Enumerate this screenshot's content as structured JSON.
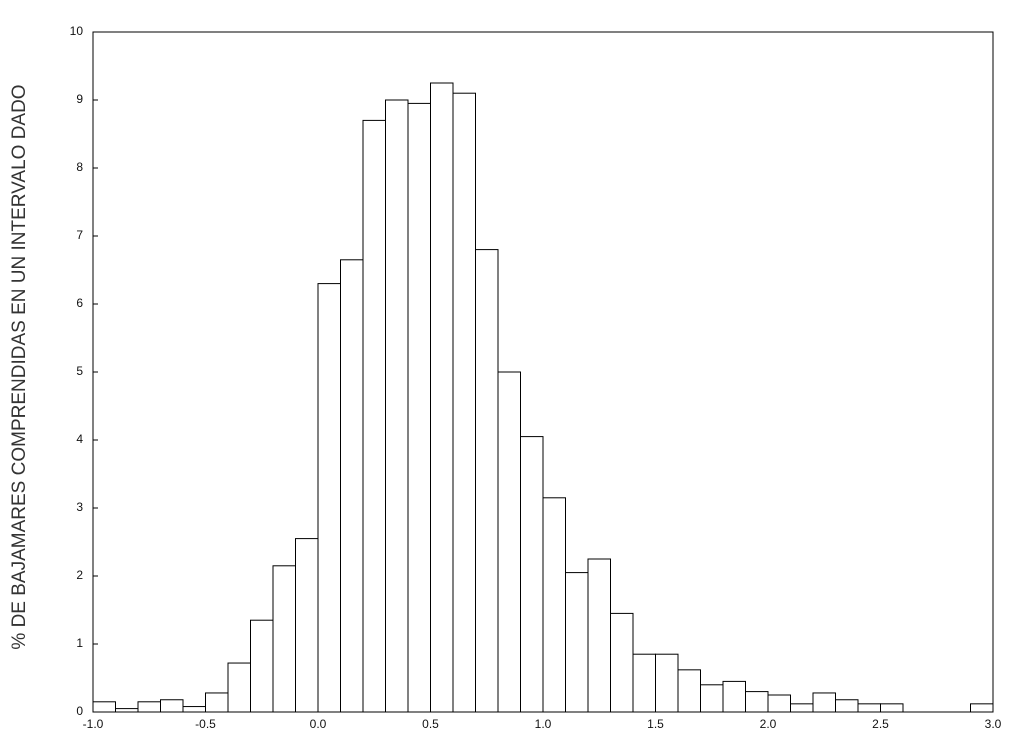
{
  "chart_data": {
    "type": "histogram",
    "ylabel": "% DE BAJAMARES COMPRENDIDAS EN UN INTERVALO DADO",
    "bins": [
      -1.0,
      -0.9,
      -0.8,
      -0.7,
      -0.6,
      -0.5,
      -0.4,
      -0.3,
      -0.2,
      -0.1,
      0.0,
      0.1,
      0.2,
      0.3,
      0.4,
      0.5,
      0.6,
      0.7,
      0.8,
      0.9,
      1.0,
      1.1,
      1.2,
      1.3,
      1.4,
      1.5,
      1.6,
      1.7,
      1.8,
      1.9,
      2.0,
      2.1,
      2.2,
      2.3,
      2.4,
      2.5,
      2.6,
      2.7,
      2.8,
      2.9,
      3.0
    ],
    "values": [
      0.15,
      0.05,
      0.15,
      0.18,
      0.08,
      0.28,
      0.72,
      1.35,
      2.15,
      2.55,
      6.3,
      6.65,
      8.7,
      9.0,
      8.95,
      9.25,
      9.1,
      6.8,
      5.0,
      4.05,
      3.15,
      2.05,
      2.25,
      1.45,
      0.85,
      0.85,
      0.62,
      0.4,
      0.45,
      0.3,
      0.25,
      0.12,
      0.28,
      0.18,
      0.12,
      0.12,
      0,
      0,
      0,
      0.12
    ],
    "color": "#ffffff",
    "edgecolor": "#000000",
    "xlim": [
      -1.0,
      3.0
    ],
    "ylim": [
      0,
      10
    ],
    "xticks": [
      {
        "value": -1.0,
        "label": "-1.0"
      },
      -0.5,
      {
        "value": 0.0,
        "label": "0.0"
      },
      0.5,
      {
        "value": 1.0,
        "label": "1.0"
      },
      1.5,
      {
        "value": 2.0,
        "label": "2.0"
      },
      2.5,
      {
        "value": 3.0,
        "label": "3.0"
      }
    ],
    "yticks": [
      0,
      1,
      2,
      3,
      4,
      5,
      6,
      7,
      8,
      9,
      10
    ],
    "grid": false
  }
}
